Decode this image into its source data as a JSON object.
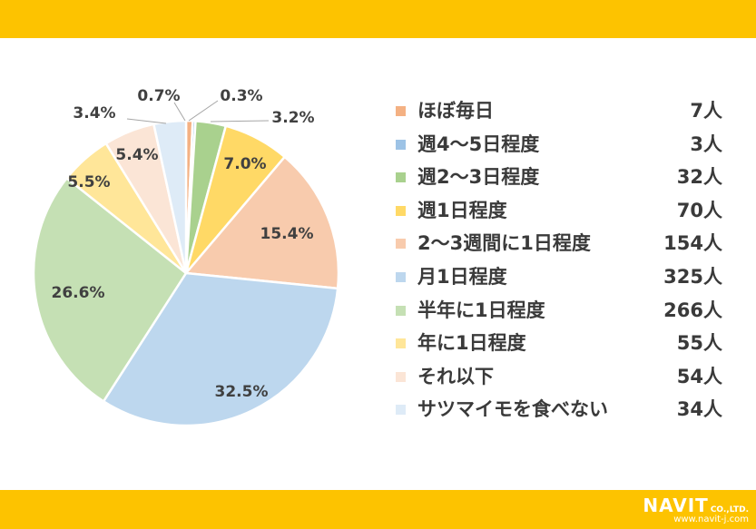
{
  "chart_data": {
    "type": "pie",
    "categories": [
      "ほぼ毎日",
      "週4～5日程度",
      "週2～3日程度",
      "週1日程度",
      "2～3週間に1日程度",
      "月1日程度",
      "半年に1日程度",
      "年に1日程度",
      "それ以下",
      "サツマイモを食べない"
    ],
    "values": [
      0.7,
      0.3,
      3.2,
      7.0,
      15.4,
      32.5,
      26.6,
      5.5,
      5.4,
      3.4
    ],
    "percent_labels": [
      "0.7%",
      "0.3%",
      "3.2%",
      "7.0%",
      "15.4%",
      "32.5%",
      "26.6%",
      "5.5%",
      "5.4%",
      "3.4%"
    ],
    "counts": [
      "7人",
      "3人",
      "32人",
      "70人",
      "154人",
      "325人",
      "266人",
      "55人",
      "54人",
      "34人"
    ],
    "colors": [
      "#F4B183",
      "#9DC3E6",
      "#A9D18E",
      "#FFD966",
      "#F8CBAD",
      "#BDD7EE",
      "#C5E0B4",
      "#FFE699",
      "#FBE5D6",
      "#DEEBF7"
    ],
    "legend_position": "right"
  },
  "brand": {
    "logo": "NAVIT",
    "suffix": "CO.,LTD.",
    "url": "www.navit-j.com"
  }
}
